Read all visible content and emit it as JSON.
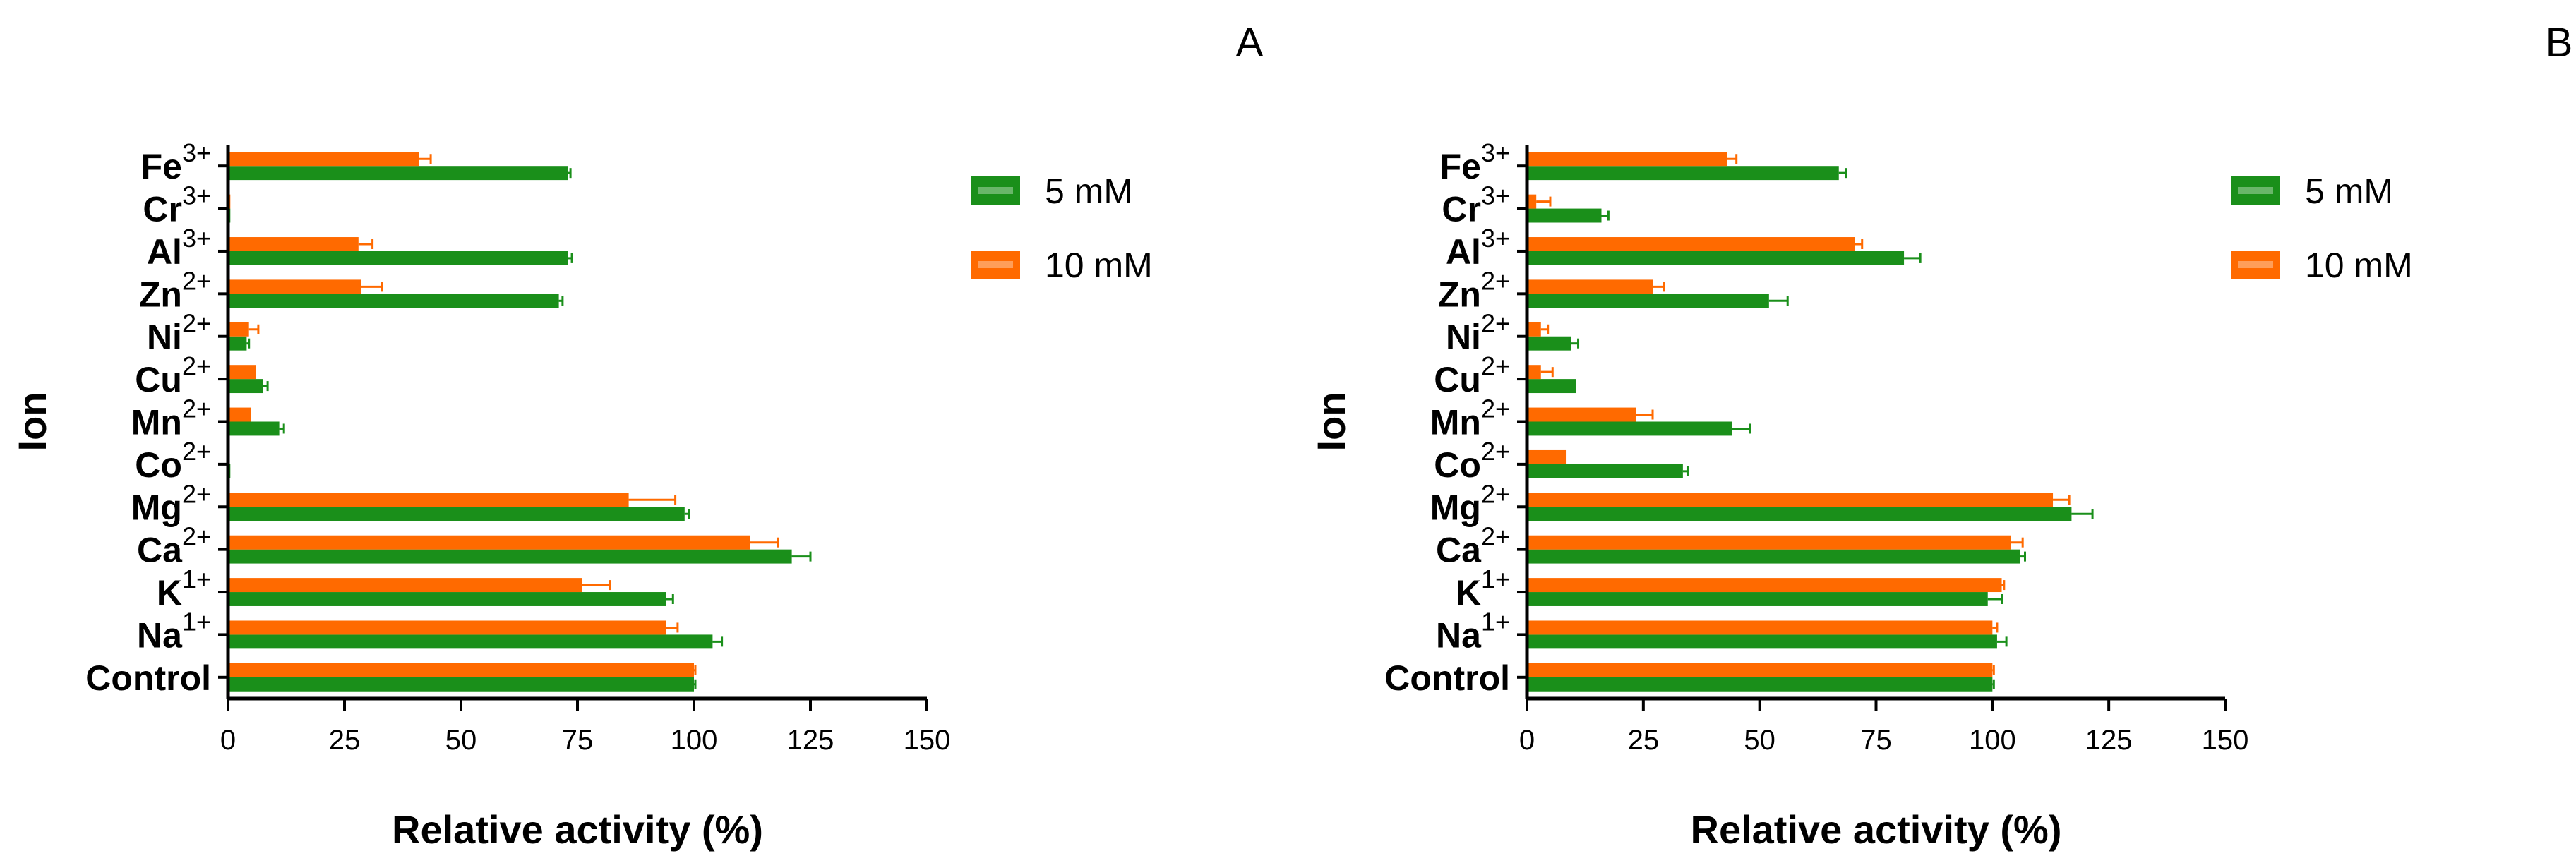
{
  "colors": {
    "series_5mM": "#1a8f1a",
    "series_10mM": "#ff6a00",
    "axis": "#000000"
  },
  "chart_data": [
    {
      "type": "bar",
      "orientation": "horizontal",
      "panel_label": "A",
      "xlabel": "Relative activity (%)",
      "ylabel": "Ion",
      "xlim": [
        0,
        150
      ],
      "xticks": [
        "0",
        "25",
        "50",
        "75",
        "100",
        "125",
        "150"
      ],
      "categories": [
        {
          "base": "Fe",
          "sup": "3+"
        },
        {
          "base": "Cr",
          "sup": "3+"
        },
        {
          "base": "Al",
          "sup": "3+"
        },
        {
          "base": "Zn",
          "sup": "2+"
        },
        {
          "base": "Ni",
          "sup": "2+"
        },
        {
          "base": "Cu",
          "sup": "2+"
        },
        {
          "base": "Mn",
          "sup": "2+"
        },
        {
          "base": "Co",
          "sup": "2+"
        },
        {
          "base": "Mg",
          "sup": "2+"
        },
        {
          "base": "Ca",
          "sup": "2+"
        },
        {
          "base": "K",
          "sup": "1+"
        },
        {
          "base": "Na",
          "sup": "1+"
        },
        {
          "base": "Control",
          "sup": ""
        }
      ],
      "series": [
        {
          "name": "5 mM",
          "values": [
            73,
            0.5,
            73,
            71,
            4,
            7.5,
            11,
            0.5,
            98,
            121,
            94,
            104,
            100
          ],
          "errors": [
            0.5,
            0,
            0.8,
            0.8,
            0.5,
            1,
            1,
            0,
            1,
            4,
            1.5,
            2,
            0.3
          ]
        },
        {
          "name": "10 mM",
          "values": [
            41,
            0.5,
            28,
            28.5,
            4.5,
            6,
            5,
            0,
            86,
            112,
            76,
            94,
            100
          ],
          "errors": [
            2.5,
            0,
            3,
            4.5,
            2,
            0,
            0,
            0,
            10,
            6,
            6,
            2.5,
            0.3
          ]
        }
      ]
    },
    {
      "type": "bar",
      "orientation": "horizontal",
      "panel_label": "B",
      "xlabel": "Relative activity (%)",
      "ylabel": "Ion",
      "xlim": [
        0,
        150
      ],
      "xticks": [
        "0",
        "25",
        "50",
        "75",
        "100",
        "125",
        "150"
      ],
      "categories": [
        {
          "base": "Fe",
          "sup": "3+"
        },
        {
          "base": "Cr",
          "sup": "3+"
        },
        {
          "base": "Al",
          "sup": "3+"
        },
        {
          "base": "Zn",
          "sup": "2+"
        },
        {
          "base": "Ni",
          "sup": "2+"
        },
        {
          "base": "Cu",
          "sup": "2+"
        },
        {
          "base": "Mn",
          "sup": "2+"
        },
        {
          "base": "Co",
          "sup": "2+"
        },
        {
          "base": "Mg",
          "sup": "2+"
        },
        {
          "base": "Ca",
          "sup": "2+"
        },
        {
          "base": "K",
          "sup": "1+"
        },
        {
          "base": "Na",
          "sup": "1+"
        },
        {
          "base": "Control",
          "sup": ""
        }
      ],
      "series": [
        {
          "name": "5 mM",
          "values": [
            67,
            16,
            81,
            52,
            9.5,
            10.5,
            44,
            33.5,
            117,
            106,
            99,
            101,
            100
          ],
          "errors": [
            1.5,
            1.5,
            3.5,
            4,
            1.5,
            0,
            4,
            1,
            4.5,
            1,
            3,
            2,
            0.3
          ]
        },
        {
          "name": "10 mM",
          "values": [
            43,
            2,
            70.5,
            27,
            3,
            3,
            23.5,
            8.5,
            113,
            104,
            102,
            100,
            100
          ],
          "errors": [
            2,
            3,
            1.5,
            2.5,
            1.5,
            2.5,
            3.5,
            0,
            3.5,
            2.5,
            0.5,
            1,
            0.3
          ]
        }
      ]
    }
  ]
}
